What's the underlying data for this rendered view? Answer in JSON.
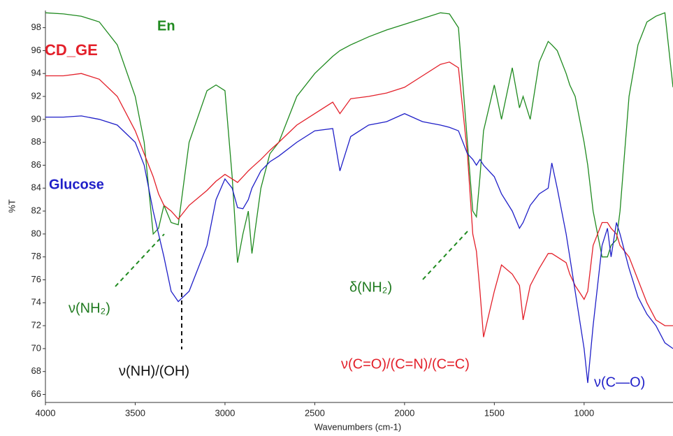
{
  "chart_data": {
    "type": "line",
    "x_label": "Wavenumbers (cm-1)",
    "y_label": "%T",
    "xlim": [
      4000,
      505
    ],
    "ylim": [
      65.3,
      99.5
    ],
    "xticks": [
      4000,
      3500,
      3000,
      2500,
      2000,
      1500,
      1000
    ],
    "yticks": [
      66,
      68,
      70,
      72,
      74,
      76,
      78,
      80,
      82,
      84,
      86,
      88,
      90,
      92,
      94,
      96,
      98
    ],
    "x": [
      4000,
      3900,
      3800,
      3700,
      3600,
      3500,
      3450,
      3400,
      3370,
      3340,
      3300,
      3260,
      3200,
      3100,
      3050,
      3000,
      2960,
      2930,
      2900,
      2870,
      2850,
      2800,
      2750,
      2700,
      2600,
      2500,
      2400,
      2360,
      2300,
      2200,
      2100,
      2000,
      1900,
      1800,
      1750,
      1700,
      1650,
      1620,
      1600,
      1580,
      1560,
      1500,
      1460,
      1400,
      1360,
      1340,
      1300,
      1250,
      1200,
      1180,
      1150,
      1100,
      1080,
      1050,
      1000,
      980,
      950,
      900,
      870,
      850,
      820,
      800,
      750,
      700,
      650,
      600,
      550,
      505
    ],
    "series": [
      {
        "name": "En",
        "color": "#1f8a1f",
        "values": [
          99.3,
          99.2,
          99.0,
          98.5,
          96.5,
          92,
          88,
          80,
          80.5,
          82.5,
          81,
          80.8,
          88,
          92.5,
          93,
          92.5,
          85,
          77.5,
          80,
          82,
          78.3,
          84,
          87,
          88,
          92,
          94,
          95.5,
          96,
          96.5,
          97.2,
          97.8,
          98.3,
          98.8,
          99.3,
          99.2,
          98,
          88,
          82,
          81.5,
          85,
          89,
          93,
          90,
          94.5,
          91,
          92,
          90,
          95,
          96.8,
          96.5,
          96,
          94,
          93,
          92,
          88,
          86,
          82,
          78,
          78,
          79,
          79.5,
          82,
          92,
          96.5,
          98.5,
          99,
          99.3,
          92.8
        ]
      },
      {
        "name": "CD_GE",
        "color": "#e3202a",
        "values": [
          93.8,
          93.8,
          94,
          93.5,
          92,
          89,
          87,
          85,
          83.5,
          82.5,
          82,
          81.3,
          82.5,
          83.8,
          84.6,
          85.2,
          84.8,
          84.5,
          85,
          85.5,
          85.8,
          86.5,
          87.3,
          88,
          89.5,
          90.5,
          91.5,
          90.5,
          91.8,
          92,
          92.3,
          92.8,
          93.8,
          94.8,
          95,
          94.5,
          87,
          80,
          78.5,
          75,
          71,
          75,
          77.3,
          76.5,
          75.5,
          72.5,
          75.5,
          77,
          78.3,
          78.3,
          78,
          77.5,
          76.5,
          75.5,
          74.3,
          75,
          79,
          81,
          81,
          80.5,
          80,
          79,
          78,
          76,
          74,
          72.5,
          72,
          72
        ]
      },
      {
        "name": "Glucose",
        "color": "#1f1fc8",
        "values": [
          90.2,
          90.2,
          90.3,
          90,
          89.5,
          88,
          86,
          82,
          80,
          78,
          75,
          74.1,
          75,
          79,
          83,
          84.8,
          84,
          82.3,
          82.2,
          83,
          84,
          85.5,
          86.3,
          86.8,
          88,
          89,
          89.2,
          85.5,
          88.5,
          89.5,
          89.8,
          90.5,
          89.8,
          89.5,
          89.3,
          89,
          87,
          86.5,
          86,
          86.5,
          86,
          85,
          83.5,
          82,
          80.5,
          81,
          82.5,
          83.5,
          84,
          86.2,
          84,
          80,
          78,
          75,
          70,
          67,
          72,
          79,
          80.5,
          78,
          81,
          80,
          77,
          74.5,
          73,
          72,
          70.5,
          70
        ]
      }
    ],
    "annotations": [
      {
        "text": "ν(NH₂)",
        "color": "#1f7a1f"
      },
      {
        "text": "δ(NH₂)",
        "color": "#1f7a1f"
      },
      {
        "text": "ν(NH)/(OH)",
        "color": "#111111"
      },
      {
        "text": "ν(C=O)/(C=N)/(C=C)",
        "color": "#e3202a"
      },
      {
        "text": "ν(C—O)",
        "color": "#1f1fc8"
      }
    ]
  }
}
